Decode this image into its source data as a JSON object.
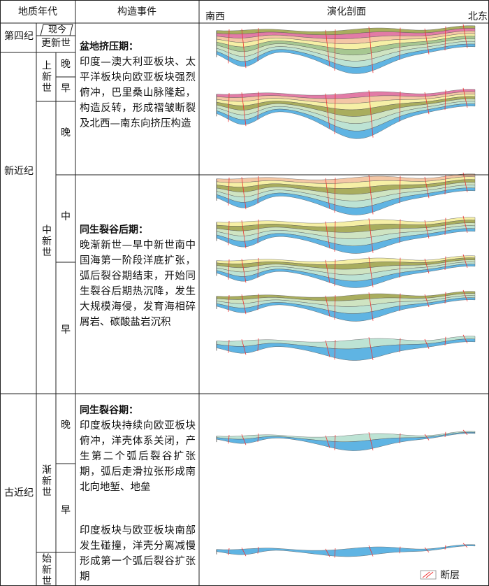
{
  "header": {
    "era": "地质年代",
    "events": "构造事件",
    "profiles": "演化剖面",
    "southwest": "南西",
    "northeast": "北东"
  },
  "periods": [
    "第四纪",
    "新近纪",
    "古近纪"
  ],
  "epochs": [
    "现今",
    "更新世",
    "上新世",
    "中新世",
    "渐新世",
    "始新世"
  ],
  "stages": [
    "晚",
    "早",
    "晚",
    "中",
    "早",
    "晚",
    "早"
  ],
  "events": [
    {
      "title": "盆地挤压期：",
      "text": "印度—澳大利亚板块、太平洋板块向欧亚板块强烈俯冲，巴里桑山脉隆起，构造反转，形成褶皱断裂及北西—南东向挤压构造"
    },
    {
      "title": "同生裂谷后期：",
      "text": "晚渐新世—早中新世南中国海第一阶段洋底扩张，弧后裂谷期结束，开始同生裂谷后期热沉降，发生大规模海侵，发育海相碎屑岩、碳酸盐岩沉积"
    },
    {
      "title": "同生裂谷期：",
      "text": "印度板块持续向欧亚板块俯冲，洋壳体系关闭，产生第二个弧后裂谷扩张期，弧后走滑拉张形成南北向地堑、地垒"
    },
    {
      "text": "印度板块与欧亚板块南部发生碰撞，洋壳分离减慢形成第一个弧后裂谷扩张期"
    }
  ],
  "legend": "断层"
}
